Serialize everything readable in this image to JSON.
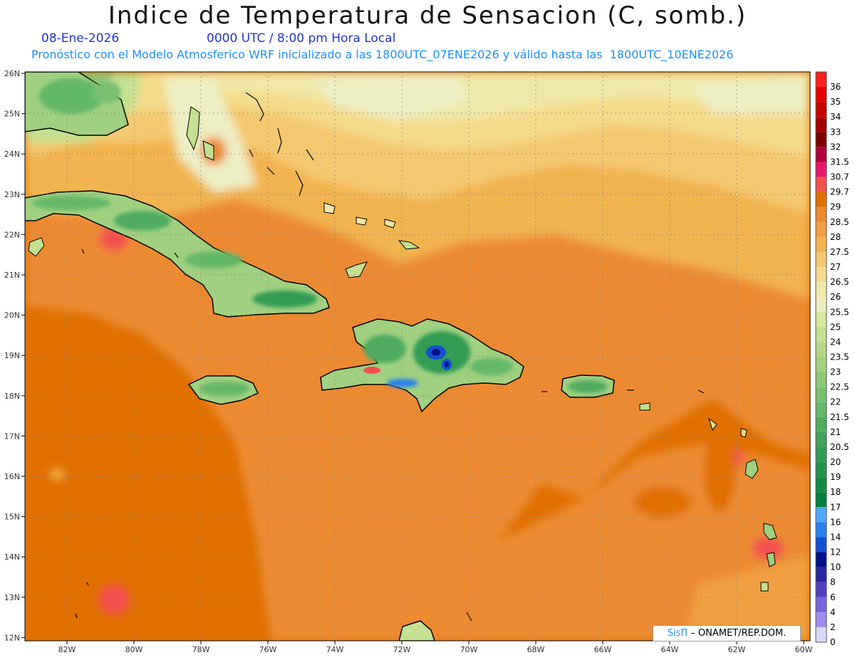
{
  "title": "Indice de Temperatura de Sensacion (C, somb.)",
  "date": "08-Ene-2026",
  "time": "0000 UTC / 8:00 pm Hora Local",
  "forecast": "Pronóstico con el Modelo Atmosferico WRF inicializado a las 1800UTC_07ENE2026 y válido hasta las  1800UTC_10ENE2026",
  "credit": {
    "brand": "SisΠ",
    "org": "– ONAMET/REP.DOM."
  },
  "lat_labels": [
    "26N",
    "25N",
    "24N",
    "23N",
    "22N",
    "21N",
    "20N",
    "19N",
    "18N",
    "17N",
    "16N",
    "15N",
    "14N",
    "13N",
    "12N"
  ],
  "lon_labels": [
    "82W",
    "80W",
    "78W",
    "76W",
    "74W",
    "72W",
    "70W",
    "68W",
    "66W",
    "64W",
    "62W",
    "60W"
  ],
  "legend": [
    {
      "label": "36",
      "color": "#ff2020"
    },
    {
      "label": "35",
      "color": "#e60000"
    },
    {
      "label": "34",
      "color": "#c80000"
    },
    {
      "label": "33",
      "color": "#a50000"
    },
    {
      "label": "32",
      "color": "#7d0000"
    },
    {
      "label": "31.5",
      "color": "#b0003c"
    },
    {
      "label": "30.7",
      "color": "#e8186a"
    },
    {
      "label": "29.7",
      "color": "#f45050"
    },
    {
      "label": "29",
      "color": "#e07000"
    },
    {
      "label": "28.5",
      "color": "#ec8a30"
    },
    {
      "label": "28",
      "color": "#f0a040"
    },
    {
      "label": "27.5",
      "color": "#f2b450"
    },
    {
      "label": "27",
      "color": "#f4c870"
    },
    {
      "label": "26.5",
      "color": "#f4dc8c"
    },
    {
      "label": "26",
      "color": "#f0e8a8"
    },
    {
      "label": "25.5",
      "color": "#eeeec4"
    },
    {
      "label": "25",
      "color": "#d6eaa0"
    },
    {
      "label": "24",
      "color": "#c4e090"
    },
    {
      "label": "23.5",
      "color": "#b4d888"
    },
    {
      "label": "23",
      "color": "#a0d080"
    },
    {
      "label": "22.5",
      "color": "#8cc878"
    },
    {
      "label": "22",
      "color": "#78c070"
    },
    {
      "label": "21.5",
      "color": "#64b868"
    },
    {
      "label": "21",
      "color": "#50ac60"
    },
    {
      "label": "20.5",
      "color": "#40a45a"
    },
    {
      "label": "20",
      "color": "#329c54"
    },
    {
      "label": "19",
      "color": "#22944c"
    },
    {
      "label": "18",
      "color": "#128a44"
    },
    {
      "label": "17",
      "color": "#00803c"
    },
    {
      "label": "16",
      "color": "#50a8ff"
    },
    {
      "label": "14",
      "color": "#2880f0"
    },
    {
      "label": "12",
      "color": "#1050d0"
    },
    {
      "label": "10",
      "color": "#00108a"
    },
    {
      "label": "8",
      "color": "#2828a0"
    },
    {
      "label": "6",
      "color": "#5040c0"
    },
    {
      "label": "4",
      "color": "#7864dc"
    },
    {
      "label": "2",
      "color": "#a08cf0"
    },
    {
      "label": "0",
      "color": "#d8d8f8"
    }
  ]
}
